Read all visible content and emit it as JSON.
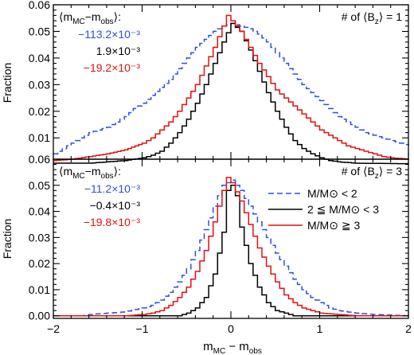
{
  "colors": {
    "blue": "#2f4fe0",
    "black": "#000000",
    "red": "#e01010"
  },
  "chart_data": {
    "type": "line",
    "step": true,
    "xlabel": "m_MC − m_obs",
    "ylabel": "Fraction",
    "xlim": [
      -2,
      2
    ],
    "xticks": [
      -2,
      -1,
      0,
      1,
      2
    ],
    "xtick_labels": [
      "−2",
      "−1",
      "0",
      "1",
      "2"
    ],
    "panels": [
      {
        "corner_label": "# of ⟨B_z⟩ = 1",
        "offset_title": "⟨m_MC−m_obs⟩:",
        "ylim": [
          0.002,
          0.06
        ],
        "yticks": [
          0.01,
          0.02,
          0.03,
          0.04,
          0.05,
          0.06
        ],
        "ytick_labels": [
          "0.01",
          "0.02",
          "0.03",
          "0.04",
          "0.05",
          "0.06"
        ],
        "series": [
          {
            "offset": "−113.2×10⁻³",
            "color": "blue",
            "dash": true,
            "points": [
              [
                -2.0,
                0.004
              ],
              [
                -1.9,
                0.006
              ],
              [
                -1.8,
                0.008
              ],
              [
                -1.7,
                0.01
              ],
              [
                -1.6,
                0.012
              ],
              [
                -1.5,
                0.013
              ],
              [
                -1.4,
                0.014
              ],
              [
                -1.3,
                0.016
              ],
              [
                -1.2,
                0.018
              ],
              [
                -1.1,
                0.021
              ],
              [
                -1.0,
                0.023
              ],
              [
                -0.9,
                0.026
              ],
              [
                -0.8,
                0.029
              ],
              [
                -0.7,
                0.032
              ],
              [
                -0.6,
                0.036
              ],
              [
                -0.5,
                0.04
              ],
              [
                -0.4,
                0.044
              ],
              [
                -0.3,
                0.047
              ],
              [
                -0.2,
                0.05
              ],
              [
                -0.1,
                0.052
              ],
              [
                0.0,
                0.053
              ],
              [
                0.1,
                0.052
              ],
              [
                0.2,
                0.051
              ],
              [
                0.3,
                0.049
              ],
              [
                0.4,
                0.046
              ],
              [
                0.5,
                0.042
              ],
              [
                0.6,
                0.038
              ],
              [
                0.7,
                0.034
              ],
              [
                0.8,
                0.03
              ],
              [
                0.9,
                0.027
              ],
              [
                1.0,
                0.024
              ],
              [
                1.1,
                0.021
              ],
              [
                1.2,
                0.018
              ],
              [
                1.3,
                0.016
              ],
              [
                1.4,
                0.014
              ],
              [
                1.5,
                0.012
              ],
              [
                1.6,
                0.011
              ],
              [
                1.7,
                0.01
              ],
              [
                1.8,
                0.009
              ],
              [
                1.9,
                0.008
              ],
              [
                2.0,
                0.007
              ]
            ]
          },
          {
            "offset": "1.9×10⁻³",
            "color": "black",
            "dash": false,
            "points": [
              [
                -2.0,
                0.0005
              ],
              [
                -1.6,
                0.0005
              ],
              [
                -1.4,
                0.001
              ],
              [
                -1.2,
                0.0015
              ],
              [
                -1.0,
                0.0025
              ],
              [
                -0.9,
                0.0035
              ],
              [
                -0.8,
                0.005
              ],
              [
                -0.7,
                0.008
              ],
              [
                -0.6,
                0.012
              ],
              [
                -0.5,
                0.017
              ],
              [
                -0.4,
                0.023
              ],
              [
                -0.3,
                0.03
              ],
              [
                -0.2,
                0.038
              ],
              [
                -0.1,
                0.046
              ],
              [
                0.0,
                0.053
              ],
              [
                0.1,
                0.05
              ],
              [
                0.2,
                0.043
              ],
              [
                0.3,
                0.035
              ],
              [
                0.4,
                0.027
              ],
              [
                0.5,
                0.02
              ],
              [
                0.6,
                0.014
              ],
              [
                0.7,
                0.009
              ],
              [
                0.8,
                0.006
              ],
              [
                0.9,
                0.004
              ],
              [
                1.0,
                0.0025
              ],
              [
                1.1,
                0.0015
              ],
              [
                1.2,
                0.001
              ],
              [
                1.4,
                0.0005
              ],
              [
                2.0,
                0.0003
              ]
            ]
          },
          {
            "offset": "−19.2×10⁻³",
            "color": "red",
            "dash": false,
            "points": [
              [
                -2.0,
                0.0015
              ],
              [
                -1.8,
                0.002
              ],
              [
                -1.6,
                0.003
              ],
              [
                -1.4,
                0.004
              ],
              [
                -1.2,
                0.0055
              ],
              [
                -1.0,
                0.008
              ],
              [
                -0.9,
                0.01
              ],
              [
                -0.8,
                0.013
              ],
              [
                -0.7,
                0.016
              ],
              [
                -0.6,
                0.02
              ],
              [
                -0.5,
                0.025
              ],
              [
                -0.4,
                0.03
              ],
              [
                -0.3,
                0.037
              ],
              [
                -0.2,
                0.044
              ],
              [
                -0.1,
                0.052
              ],
              [
                -0.05,
                0.056
              ],
              [
                0.0,
                0.054
              ],
              [
                0.1,
                0.05
              ],
              [
                0.2,
                0.044
              ],
              [
                0.3,
                0.038
              ],
              [
                0.4,
                0.033
              ],
              [
                0.5,
                0.028
              ],
              [
                0.6,
                0.025
              ],
              [
                0.7,
                0.022
              ],
              [
                0.8,
                0.019
              ],
              [
                0.9,
                0.016
              ],
              [
                1.0,
                0.013
              ],
              [
                1.1,
                0.011
              ],
              [
                1.2,
                0.009
              ],
              [
                1.3,
                0.007
              ],
              [
                1.4,
                0.006
              ],
              [
                1.5,
                0.005
              ],
              [
                1.6,
                0.004
              ],
              [
                1.7,
                0.003
              ],
              [
                1.8,
                0.0025
              ],
              [
                2.0,
                0.002
              ]
            ]
          }
        ]
      },
      {
        "corner_label": "# of ⟨B_z⟩ = 3",
        "offset_title": "⟨m_MC−m_obs⟩:",
        "ylim": [
          -0.001,
          0.06
        ],
        "yticks": [
          0.0,
          0.01,
          0.02,
          0.03,
          0.04,
          0.05,
          0.06
        ],
        "ytick_labels": [
          "0.00",
          "0.01",
          "0.02",
          "0.03",
          "0.04",
          "0.05",
          "0.06"
        ],
        "series": [
          {
            "offset": "−11.2×10⁻³",
            "color": "blue",
            "dash": true,
            "points": [
              [
                -2.0,
                0.0
              ],
              [
                -1.7,
                0.0
              ],
              [
                -1.6,
                0.0005
              ],
              [
                -1.4,
                0.001
              ],
              [
                -1.2,
                0.0015
              ],
              [
                -1.0,
                0.003
              ],
              [
                -0.9,
                0.004
              ],
              [
                -0.8,
                0.006
              ],
              [
                -0.7,
                0.009
              ],
              [
                -0.6,
                0.013
              ],
              [
                -0.5,
                0.018
              ],
              [
                -0.4,
                0.025
              ],
              [
                -0.3,
                0.033
              ],
              [
                -0.2,
                0.042
              ],
              [
                -0.1,
                0.05
              ],
              [
                0.0,
                0.052
              ],
              [
                0.1,
                0.048
              ],
              [
                0.2,
                0.042
              ],
              [
                0.3,
                0.036
              ],
              [
                0.4,
                0.03
              ],
              [
                0.5,
                0.024
              ],
              [
                0.6,
                0.019
              ],
              [
                0.7,
                0.014
              ],
              [
                0.8,
                0.01
              ],
              [
                0.9,
                0.007
              ],
              [
                1.0,
                0.005
              ],
              [
                1.1,
                0.003
              ],
              [
                1.2,
                0.002
              ],
              [
                1.4,
                0.001
              ],
              [
                1.6,
                0.0005
              ],
              [
                2.0,
                0.0
              ]
            ]
          },
          {
            "offset": "−0.4×10⁻³",
            "color": "black",
            "dash": false,
            "points": [
              [
                -2.0,
                0.0
              ],
              [
                -0.6,
                0.0
              ],
              [
                -0.5,
                0.001
              ],
              [
                -0.4,
                0.003
              ],
              [
                -0.3,
                0.007
              ],
              [
                -0.2,
                0.016
              ],
              [
                -0.1,
                0.032
              ],
              [
                -0.05,
                0.048
              ],
              [
                0.0,
                0.05
              ],
              [
                0.05,
                0.046
              ],
              [
                0.1,
                0.034
              ],
              [
                0.2,
                0.02
              ],
              [
                0.3,
                0.011
              ],
              [
                0.4,
                0.005
              ],
              [
                0.5,
                0.002
              ],
              [
                0.6,
                0.001
              ],
              [
                0.7,
                0.0
              ],
              [
                2.0,
                0.0
              ]
            ]
          },
          {
            "offset": "−19.8×10⁻³",
            "color": "red",
            "dash": false,
            "points": [
              [
                -2.0,
                0.0
              ],
              [
                -1.2,
                0.0
              ],
              [
                -1.0,
                0.0005
              ],
              [
                -0.9,
                0.001
              ],
              [
                -0.8,
                0.002
              ],
              [
                -0.7,
                0.004
              ],
              [
                -0.6,
                0.007
              ],
              [
                -0.5,
                0.011
              ],
              [
                -0.4,
                0.017
              ],
              [
                -0.3,
                0.025
              ],
              [
                -0.2,
                0.036
              ],
              [
                -0.1,
                0.048
              ],
              [
                -0.05,
                0.053
              ],
              [
                0.0,
                0.051
              ],
              [
                0.1,
                0.044
              ],
              [
                0.2,
                0.035
              ],
              [
                0.3,
                0.026
              ],
              [
                0.4,
                0.019
              ],
              [
                0.5,
                0.013
              ],
              [
                0.6,
                0.008
              ],
              [
                0.7,
                0.005
              ],
              [
                0.8,
                0.003
              ],
              [
                0.9,
                0.002
              ],
              [
                1.0,
                0.001
              ],
              [
                1.2,
                0.0005
              ],
              [
                1.4,
                0.0
              ],
              [
                2.0,
                0.0
              ]
            ]
          }
        ],
        "legend": [
          {
            "color": "blue",
            "dash": true,
            "label": "M/M⊙ < 2"
          },
          {
            "color": "black",
            "dash": false,
            "label": "2 ≦ M/M⊙ < 3"
          },
          {
            "color": "red",
            "dash": false,
            "label": "M/M⊙ ≧ 3"
          }
        ]
      }
    ]
  }
}
